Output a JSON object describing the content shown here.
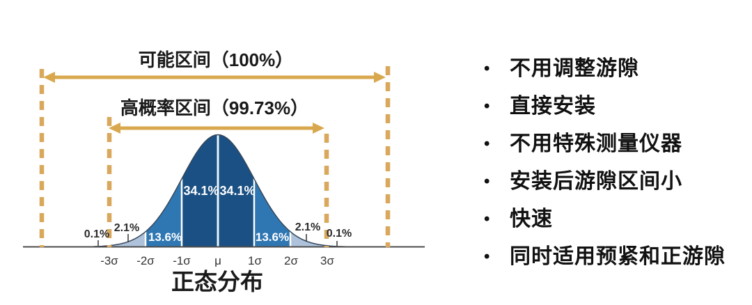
{
  "chart": {
    "range_top_label": "可能区间（100%）",
    "range_inner_label": "高概率区间（99.73%）",
    "caption": "正态分布",
    "x_ticks": [
      "-3σ",
      "-2σ",
      "-1σ",
      "μ",
      "1σ",
      "2σ",
      "3σ"
    ],
    "labels": {
      "p34_left": "34.1%",
      "p34_right": "34.1%",
      "p13_left": "13.6%",
      "p13_right": "13.6%",
      "p2_left": "2.1%",
      "p2_right": "2.1%",
      "p01_left": "0.1%",
      "p01_right": "0.1%"
    }
  },
  "chart_data": {
    "type": "area",
    "distribution": "normal",
    "title": "正态分布",
    "annotated_ranges": [
      {
        "label": "可能区间",
        "coverage_pct": 100,
        "span_sigma": "beyond ±3σ (full axis)"
      },
      {
        "label": "高概率区间",
        "coverage_pct": 99.73,
        "span_sigma": "μ ± 3σ"
      }
    ],
    "x_tick_labels": [
      "-3σ",
      "-2σ",
      "-1σ",
      "μ",
      "1σ",
      "2σ",
      "3σ"
    ],
    "segments": [
      {
        "interval": "< -3σ",
        "probability_pct": 0.1
      },
      {
        "interval": "-3σ … -2σ",
        "probability_pct": 2.1
      },
      {
        "interval": "-2σ … -1σ",
        "probability_pct": 13.6
      },
      {
        "interval": "-1σ … μ",
        "probability_pct": 34.1
      },
      {
        "interval": "μ … 1σ",
        "probability_pct": 34.1
      },
      {
        "interval": "1σ … 2σ",
        "probability_pct": 13.6
      },
      {
        "interval": "2σ … 3σ",
        "probability_pct": 2.1
      },
      {
        "interval": "> 3σ",
        "probability_pct": 0.1
      }
    ],
    "grid": false,
    "legend_position": "none"
  },
  "bullets": {
    "marker": "•",
    "items": [
      {
        "label": "不用调整游隙"
      },
      {
        "label": "直接安装"
      },
      {
        "label": "不用特殊测量仪器"
      },
      {
        "label": "安装后游隙区间小"
      },
      {
        "label": "快速"
      },
      {
        "label": "同时适用预紧和正游隙"
      }
    ]
  },
  "colors": {
    "arrow": "#D9A84E",
    "dashed_line": "#D9A85C",
    "band_core": "#1A5083",
    "band_1to2": "#2F77B3",
    "band_2to3": "#AEC3DB",
    "band_tail": "#C9D6E6",
    "axis": "#4D4D4D",
    "label_on_curve": "#FFFFFF"
  }
}
